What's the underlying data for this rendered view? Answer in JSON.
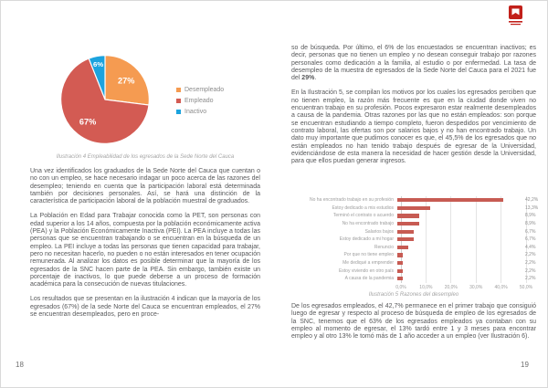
{
  "document": {
    "left_page": {
      "page_number": "18",
      "paragraphs": [
        "Una vez identificados los graduados de la Sede Norte del Cauca que cuentan o no con un empleo, se hace necesario indagar un poco acerca de las razones del desempleo; teniendo en cuenta que la participación laboral está determinada también por decisiones personales. Así, se hará una distinción de la característica de participación laboral de la población muestral de graduados.",
        "La Población en Edad para Trabajar conocida como la PET, son personas con edad superior a los 14 años, compuesta por la población económicamente activa (PEA) y la Población Económicamente Inactiva (PEI). La PEA incluye a todas las personas que se encuentran trabajando o se encuentran en la búsqueda de un empleo. La PEI incluye a todas las personas que tienen capacidad para trabajar, pero no necesitan hacerlo, no pueden o no están interesados en tener ocupación remunerada. Al analizar los datos es posible determinar que la mayoría de los egresados de la SNC hacen parte de la PEA. Sin embargo, también existe un porcentaje de inactivos, lo que puede deberse a un proceso de formación académica para la consecución de nuevas titulaciones.",
        "Los resultados que se presentan en la ilustración 4 indican que la mayoría de los egresados (67%) de la sede Norte del Cauca se encuentran empleados, el 27% se encuentran desempleados, pero en proce-"
      ]
    },
    "right_page": {
      "page_number": "19",
      "paragraph1": {
        "before_bold": "so de búsqueda. Por último, el 6% de los encuestados se encuentran inactivos; es decir, personas que no tienen un empleo y no desean conseguir trabajo por razones personales como dedicación a la familia, al estudio o por enfermedad. La tasa de desempleo de la muestra de egresados de la Sede Norte del Cauca para el 2021 fue del ",
        "bold": "29%",
        "after_bold": "."
      },
      "paragraph2": "En la Ilustración 5, se compilan los motivos por los cuales los egresados perciben que no tienen empleo, la razón más frecuente es que en la ciudad donde viven no encuentran trabajo en su profesión. Pocos expresaron estar realmente desempleados a causa de la pandemia. Otras razones por las que no están empleados: son porque se encuentran estudiando a tiempo completo, fueron despedidos por vencimiento de contrato laboral, las ofertas son por salarios bajos y no han encontrado trabajo. Un dato muy importante que pudimos conocer es que, el 45,5% de los egresados que no están empleados no han tenido trabajo después de egresar de la Universidad, evidenciándose de esta manera la necesidad de hacer gestión desde la Universidad, para que ellos puedan generar ingresos.",
      "paragraph3": "De los egresados empleados, el 42,7% permanece en el primer trabajo que consiguió luego de egresar y respecto al proceso de búsqueda de empleo de los egresados de la SNC, tenemos que el 63% de los egresados empleados ya contaban con su empleo al momento de egresar, el 13% tardó entre 1 y 3 meses para encontrar empleo y al otro 13% le tomó más de 1 año acceder a un empleo (ver Ilustración 6)."
    }
  },
  "chart_data": [
    {
      "type": "pie",
      "title": "Ilustración 4 Empleabilidad de los egresados de la Sede Norte del Cauca",
      "legend_position": "right",
      "start_angle_deg": 0,
      "direction": "clockwise",
      "slices": [
        {
          "name": "Desempleado",
          "value": 27,
          "label": "27%",
          "color": "#F59B51"
        },
        {
          "name": "Empleado",
          "value": 67,
          "label": "67%",
          "color": "#D35B53"
        },
        {
          "name": "Inactivo",
          "value": 6,
          "label": "6%",
          "color": "#1CA3DE"
        }
      ]
    },
    {
      "type": "bar",
      "orientation": "horizontal",
      "title": "Ilustración 5 Razones del desempleo",
      "bar_color": "#C75B53",
      "xlim": [
        0,
        50
      ],
      "grid": true,
      "x_ticks": [
        "0,0%",
        "10,0%",
        "20,0%",
        "30,0%",
        "40,0%",
        "50,0%"
      ],
      "categories": [
        "No ha encontrado trabajo en su profesión",
        "Estoy dedicado a mis estudios",
        "Terminó el contrato o acuerdo",
        "No ha encontrado trabajo",
        "Salarios bajos",
        "Estoy dedicado a mi hogar",
        "Renuncio",
        "Por que no tiene empleo",
        "Me dediqué a emprender",
        "Estoy viviendo en otro país",
        "A causa de la pandemia"
      ],
      "values": [
        42.2,
        13.3,
        8.9,
        8.9,
        6.7,
        6.7,
        4.4,
        2.2,
        2.2,
        2.2,
        2.2
      ],
      "value_labels": [
        "42,2%",
        "13,3%",
        "8,9%",
        "8,9%",
        "6,7%",
        "6,7%",
        "4,4%",
        "2,2%",
        "2,2%",
        "2,2%",
        "2,2%"
      ]
    }
  ],
  "logo_color": "#C2201A"
}
